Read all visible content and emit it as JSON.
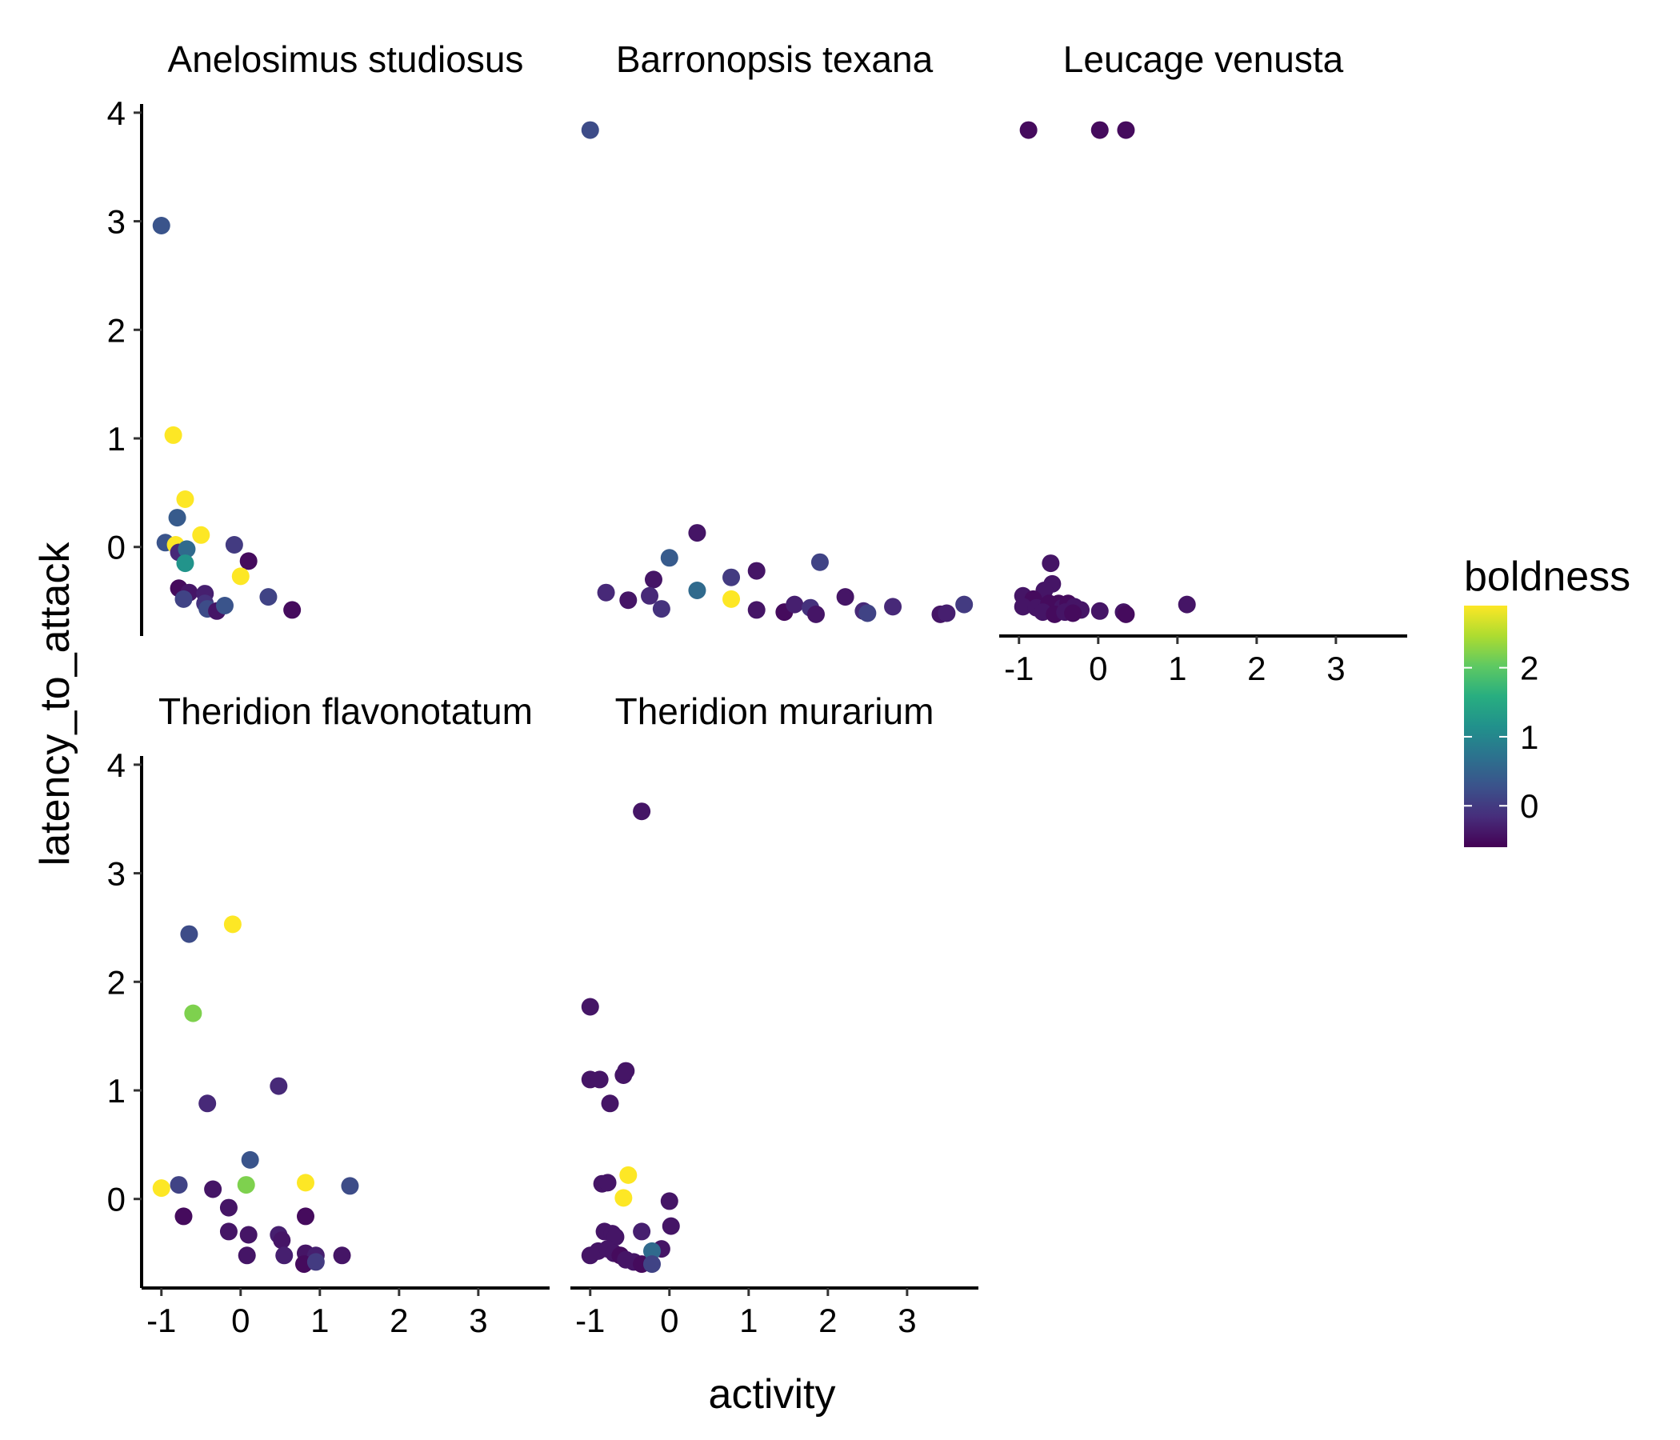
{
  "chart_data": {
    "type": "scatter",
    "xlabel": "activity",
    "ylabel": "latency_to_attack",
    "xlim": [
      -1.25,
      3.9
    ],
    "ylim": [
      -0.82,
      4.08
    ],
    "x_ticks": [
      -1,
      0,
      1,
      2,
      3
    ],
    "y_ticks": [
      0,
      1,
      2,
      3,
      4
    ],
    "x_tick_labels": [
      "-1",
      "0",
      "1",
      "2",
      "3"
    ],
    "y_tick_labels": [
      "0",
      "1",
      "2",
      "3",
      "4"
    ],
    "grid": false,
    "color_legend": {
      "title": "boldness",
      "colormap": "viridis",
      "range": [
        -0.6,
        2.9
      ],
      "ticks": [
        0,
        1,
        2
      ],
      "tick_labels": [
        "0",
        "1",
        "2"
      ],
      "position": "right"
    },
    "facets": [
      {
        "title": "Anelosimus studiosus",
        "points": [
          {
            "x": -1.0,
            "y": 2.96,
            "c": 0.3
          },
          {
            "x": -0.85,
            "y": 1.03,
            "c": 2.9
          },
          {
            "x": -0.7,
            "y": 0.44,
            "c": 2.9
          },
          {
            "x": -0.8,
            "y": 0.27,
            "c": 0.4
          },
          {
            "x": -0.5,
            "y": 0.11,
            "c": 2.9
          },
          {
            "x": -0.95,
            "y": 0.04,
            "c": 0.3
          },
          {
            "x": -0.82,
            "y": 0.02,
            "c": 2.9
          },
          {
            "x": -0.78,
            "y": -0.05,
            "c": -0.2
          },
          {
            "x": -0.68,
            "y": -0.02,
            "c": 0.6
          },
          {
            "x": -0.7,
            "y": -0.15,
            "c": 1.2
          },
          {
            "x": -0.08,
            "y": 0.02,
            "c": 0.0
          },
          {
            "x": 0.1,
            "y": -0.13,
            "c": -0.5
          },
          {
            "x": 0.0,
            "y": -0.27,
            "c": 2.9
          },
          {
            "x": -0.78,
            "y": -0.38,
            "c": -0.5
          },
          {
            "x": -0.65,
            "y": -0.42,
            "c": -0.4
          },
          {
            "x": -0.45,
            "y": -0.43,
            "c": -0.3
          },
          {
            "x": -0.72,
            "y": -0.48,
            "c": 0.1
          },
          {
            "x": -0.45,
            "y": -0.52,
            "c": -0.1
          },
          {
            "x": -0.42,
            "y": -0.57,
            "c": 0.2
          },
          {
            "x": -0.3,
            "y": -0.59,
            "c": -0.4
          },
          {
            "x": -0.2,
            "y": -0.54,
            "c": 0.3
          },
          {
            "x": 0.35,
            "y": -0.46,
            "c": 0.1
          },
          {
            "x": 0.65,
            "y": -0.58,
            "c": -0.5
          }
        ]
      },
      {
        "title": "Barronopsis texana",
        "points": [
          {
            "x": -1.0,
            "y": 3.84,
            "c": 0.2
          },
          {
            "x": 0.35,
            "y": 0.13,
            "c": -0.4
          },
          {
            "x": 0.0,
            "y": -0.1,
            "c": 0.4
          },
          {
            "x": 1.1,
            "y": -0.22,
            "c": -0.4
          },
          {
            "x": 1.9,
            "y": -0.14,
            "c": 0.1
          },
          {
            "x": -0.2,
            "y": -0.3,
            "c": -0.4
          },
          {
            "x": 0.78,
            "y": -0.28,
            "c": 0.0
          },
          {
            "x": -0.8,
            "y": -0.42,
            "c": -0.2
          },
          {
            "x": 0.35,
            "y": -0.4,
            "c": 0.6
          },
          {
            "x": -0.25,
            "y": -0.45,
            "c": -0.2
          },
          {
            "x": -0.52,
            "y": -0.49,
            "c": -0.4
          },
          {
            "x": -0.1,
            "y": -0.57,
            "c": -0.1
          },
          {
            "x": 0.78,
            "y": -0.48,
            "c": 2.9
          },
          {
            "x": 1.1,
            "y": -0.58,
            "c": -0.4
          },
          {
            "x": 1.45,
            "y": -0.6,
            "c": -0.5
          },
          {
            "x": 1.58,
            "y": -0.53,
            "c": -0.3
          },
          {
            "x": 1.78,
            "y": -0.56,
            "c": -0.1
          },
          {
            "x": 1.85,
            "y": -0.62,
            "c": -0.4
          },
          {
            "x": 2.22,
            "y": -0.46,
            "c": -0.4
          },
          {
            "x": 2.45,
            "y": -0.59,
            "c": -0.2
          },
          {
            "x": 2.5,
            "y": -0.61,
            "c": 0.1
          },
          {
            "x": 2.82,
            "y": -0.55,
            "c": -0.2
          },
          {
            "x": 3.42,
            "y": -0.62,
            "c": -0.4
          },
          {
            "x": 3.5,
            "y": -0.61,
            "c": -0.3
          },
          {
            "x": 3.72,
            "y": -0.53,
            "c": 0.0
          }
        ]
      },
      {
        "title": "Leucage venusta",
        "points": [
          {
            "x": -0.88,
            "y": 3.84,
            "c": -0.5
          },
          {
            "x": 0.02,
            "y": 3.84,
            "c": -0.5
          },
          {
            "x": 0.35,
            "y": 3.84,
            "c": -0.5
          },
          {
            "x": -0.6,
            "y": -0.15,
            "c": -0.4
          },
          {
            "x": -0.58,
            "y": -0.34,
            "c": -0.4
          },
          {
            "x": -0.68,
            "y": -0.4,
            "c": -0.4
          },
          {
            "x": -0.95,
            "y": -0.45,
            "c": -0.4
          },
          {
            "x": -0.82,
            "y": -0.48,
            "c": -0.5
          },
          {
            "x": -0.95,
            "y": -0.55,
            "c": -0.4
          },
          {
            "x": -0.78,
            "y": -0.56,
            "c": -0.4
          },
          {
            "x": -0.62,
            "y": -0.52,
            "c": -0.5
          },
          {
            "x": -0.5,
            "y": -0.52,
            "c": -0.5
          },
          {
            "x": -0.45,
            "y": -0.56,
            "c": -0.4
          },
          {
            "x": -0.38,
            "y": -0.52,
            "c": -0.5
          },
          {
            "x": -0.3,
            "y": -0.55,
            "c": -0.4
          },
          {
            "x": -0.22,
            "y": -0.58,
            "c": -0.4
          },
          {
            "x": -0.7,
            "y": -0.6,
            "c": -0.4
          },
          {
            "x": -0.55,
            "y": -0.62,
            "c": -0.5
          },
          {
            "x": -0.42,
            "y": -0.6,
            "c": -0.4
          },
          {
            "x": -0.32,
            "y": -0.61,
            "c": -0.5
          },
          {
            "x": 0.02,
            "y": -0.59,
            "c": -0.4
          },
          {
            "x": 0.32,
            "y": -0.6,
            "c": -0.4
          },
          {
            "x": 0.35,
            "y": -0.62,
            "c": -0.5
          },
          {
            "x": 1.12,
            "y": -0.53,
            "c": -0.4
          }
        ]
      },
      {
        "title": "Theridion flavonotatum",
        "points": [
          {
            "x": -0.1,
            "y": 2.53,
            "c": 2.9
          },
          {
            "x": -0.65,
            "y": 2.44,
            "c": 0.2
          },
          {
            "x": -0.6,
            "y": 1.71,
            "c": 2.2
          },
          {
            "x": -0.42,
            "y": 0.88,
            "c": -0.2
          },
          {
            "x": 0.48,
            "y": 1.04,
            "c": -0.2
          },
          {
            "x": 0.12,
            "y": 0.36,
            "c": 0.3
          },
          {
            "x": -1.0,
            "y": 0.1,
            "c": 2.9
          },
          {
            "x": -0.78,
            "y": 0.13,
            "c": 0.1
          },
          {
            "x": -0.35,
            "y": 0.09,
            "c": -0.4
          },
          {
            "x": 0.07,
            "y": 0.13,
            "c": 2.2
          },
          {
            "x": 0.82,
            "y": 0.15,
            "c": 2.9
          },
          {
            "x": 1.38,
            "y": 0.12,
            "c": 0.2
          },
          {
            "x": -0.72,
            "y": -0.16,
            "c": -0.5
          },
          {
            "x": -0.15,
            "y": -0.08,
            "c": -0.4
          },
          {
            "x": 0.82,
            "y": -0.16,
            "c": -0.5
          },
          {
            "x": -0.15,
            "y": -0.3,
            "c": -0.4
          },
          {
            "x": 0.1,
            "y": -0.33,
            "c": -0.4
          },
          {
            "x": 0.48,
            "y": -0.33,
            "c": -0.3
          },
          {
            "x": 0.52,
            "y": -0.38,
            "c": -0.4
          },
          {
            "x": 0.08,
            "y": -0.52,
            "c": -0.4
          },
          {
            "x": 0.55,
            "y": -0.52,
            "c": -0.3
          },
          {
            "x": 0.82,
            "y": -0.5,
            "c": -0.4
          },
          {
            "x": 0.95,
            "y": -0.52,
            "c": -0.3
          },
          {
            "x": 1.28,
            "y": -0.52,
            "c": -0.4
          },
          {
            "x": 0.8,
            "y": -0.6,
            "c": -0.5
          },
          {
            "x": 0.95,
            "y": -0.58,
            "c": 0.0
          }
        ]
      },
      {
        "title": "Theridion murarium",
        "points": [
          {
            "x": -0.35,
            "y": 3.57,
            "c": -0.4
          },
          {
            "x": -1.0,
            "y": 1.77,
            "c": -0.4
          },
          {
            "x": -1.0,
            "y": 1.1,
            "c": -0.4
          },
          {
            "x": -0.88,
            "y": 1.1,
            "c": -0.4
          },
          {
            "x": -0.58,
            "y": 1.14,
            "c": -0.4
          },
          {
            "x": -0.55,
            "y": 1.18,
            "c": -0.4
          },
          {
            "x": -0.75,
            "y": 0.88,
            "c": -0.4
          },
          {
            "x": -0.52,
            "y": 0.22,
            "c": 2.9
          },
          {
            "x": -0.85,
            "y": 0.14,
            "c": -0.4
          },
          {
            "x": -0.78,
            "y": 0.15,
            "c": -0.4
          },
          {
            "x": -0.58,
            "y": 0.01,
            "c": 2.9
          },
          {
            "x": 0.0,
            "y": -0.02,
            "c": -0.4
          },
          {
            "x": 0.02,
            "y": -0.25,
            "c": -0.4
          },
          {
            "x": -0.82,
            "y": -0.3,
            "c": -0.4
          },
          {
            "x": -0.72,
            "y": -0.32,
            "c": -0.4
          },
          {
            "x": -0.68,
            "y": -0.35,
            "c": -0.4
          },
          {
            "x": -0.35,
            "y": -0.3,
            "c": -0.3
          },
          {
            "x": -0.1,
            "y": -0.46,
            "c": -0.4
          },
          {
            "x": -1.0,
            "y": -0.52,
            "c": -0.4
          },
          {
            "x": -0.9,
            "y": -0.48,
            "c": -0.4
          },
          {
            "x": -0.78,
            "y": -0.46,
            "c": -0.4
          },
          {
            "x": -0.7,
            "y": -0.5,
            "c": -0.4
          },
          {
            "x": -0.62,
            "y": -0.52,
            "c": -0.5
          },
          {
            "x": -0.55,
            "y": -0.56,
            "c": -0.4
          },
          {
            "x": -0.45,
            "y": -0.58,
            "c": -0.4
          },
          {
            "x": -0.35,
            "y": -0.6,
            "c": -0.5
          },
          {
            "x": -0.22,
            "y": -0.48,
            "c": 0.6
          },
          {
            "x": -0.22,
            "y": -0.6,
            "c": 0.1
          }
        ]
      }
    ]
  }
}
